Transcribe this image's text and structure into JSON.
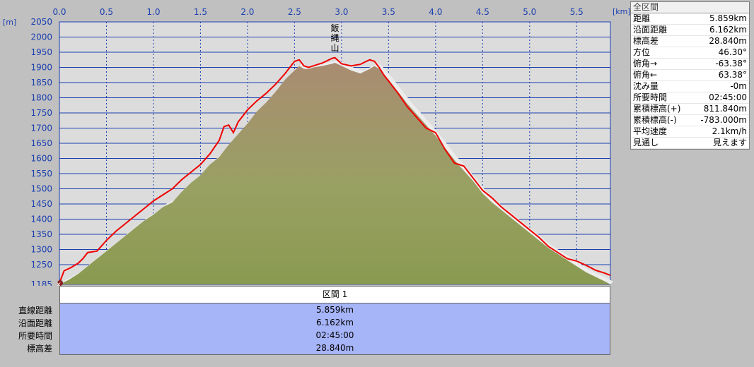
{
  "chart_data": {
    "type": "area",
    "title": "",
    "xlabel": "[km]",
    "ylabel": "[m]",
    "xlim": [
      0,
      5.859
    ],
    "ylim": [
      1185,
      2050
    ],
    "xticks": [
      "0.0",
      "0.5",
      "1.0",
      "1.5",
      "2.0",
      "2.5",
      "3.0",
      "3.5",
      "4.0",
      "4.5",
      "5.0",
      "5.5"
    ],
    "yticks": [
      "2050",
      "2000",
      "1950",
      "1900",
      "1850",
      "1800",
      "1750",
      "1700",
      "1650",
      "1600",
      "1550",
      "1500",
      "1450",
      "1400",
      "1350",
      "1300",
      "1250",
      "1185"
    ],
    "peak_label": "飯縄山",
    "peak_x": 2.93,
    "series": [
      {
        "color": "#ee0000",
        "x": [
          0.0,
          0.05,
          0.12,
          0.2,
          0.25,
          0.3,
          0.4,
          0.5,
          0.6,
          0.7,
          0.8,
          0.9,
          1.0,
          1.1,
          1.2,
          1.3,
          1.4,
          1.5,
          1.6,
          1.7,
          1.75,
          1.8,
          1.85,
          1.9,
          2.0,
          2.1,
          2.2,
          2.3,
          2.4,
          2.45,
          2.5,
          2.55,
          2.6,
          2.65,
          2.7,
          2.8,
          2.9,
          2.93,
          3.0,
          3.1,
          3.2,
          3.25,
          3.3,
          3.35,
          3.4,
          3.45,
          3.5,
          3.6,
          3.7,
          3.8,
          3.9,
          4.0,
          4.1,
          4.2,
          4.3,
          4.4,
          4.5,
          4.6,
          4.7,
          4.8,
          4.9,
          5.0,
          5.1,
          5.2,
          5.3,
          5.4,
          5.5,
          5.6,
          5.7,
          5.8,
          5.859
        ],
        "y": [
          1190,
          1230,
          1240,
          1255,
          1270,
          1290,
          1295,
          1330,
          1360,
          1385,
          1410,
          1435,
          1460,
          1480,
          1500,
          1530,
          1555,
          1580,
          1615,
          1660,
          1705,
          1710,
          1685,
          1720,
          1760,
          1790,
          1815,
          1845,
          1880,
          1900,
          1920,
          1925,
          1905,
          1900,
          1905,
          1915,
          1930,
          1932,
          1912,
          1905,
          1910,
          1918,
          1925,
          1920,
          1900,
          1875,
          1855,
          1815,
          1770,
          1735,
          1700,
          1685,
          1630,
          1585,
          1575,
          1535,
          1495,
          1470,
          1440,
          1415,
          1390,
          1365,
          1340,
          1310,
          1290,
          1270,
          1262,
          1248,
          1232,
          1222,
          1215
        ]
      },
      {
        "color": "#8a9a50",
        "x": [
          0.0,
          0.1,
          0.2,
          0.3,
          0.4,
          0.5,
          0.6,
          0.7,
          0.8,
          0.9,
          1.0,
          1.1,
          1.2,
          1.3,
          1.4,
          1.5,
          1.6,
          1.7,
          1.8,
          1.9,
          2.0,
          2.1,
          2.2,
          2.3,
          2.4,
          2.5,
          2.55,
          2.6,
          2.65,
          2.7,
          2.8,
          2.9,
          2.93,
          3.0,
          3.1,
          3.2,
          3.3,
          3.35,
          3.4,
          3.5,
          3.6,
          3.7,
          3.8,
          3.9,
          4.0,
          4.1,
          4.2,
          4.3,
          4.4,
          4.5,
          4.6,
          4.7,
          4.8,
          4.9,
          5.0,
          5.1,
          5.2,
          5.3,
          5.4,
          5.5,
          5.6,
          5.7,
          5.8,
          5.859
        ],
        "y": [
          1185,
          1200,
          1220,
          1245,
          1270,
          1295,
          1320,
          1345,
          1370,
          1395,
          1415,
          1440,
          1455,
          1490,
          1520,
          1545,
          1580,
          1605,
          1645,
          1680,
          1715,
          1755,
          1785,
          1820,
          1860,
          1890,
          1905,
          1895,
          1895,
          1900,
          1905,
          1912,
          1915,
          1905,
          1890,
          1880,
          1895,
          1905,
          1895,
          1860,
          1820,
          1780,
          1745,
          1710,
          1675,
          1635,
          1595,
          1560,
          1525,
          1485,
          1455,
          1430,
          1405,
          1380,
          1355,
          1330,
          1305,
          1285,
          1265,
          1245,
          1225,
          1210,
          1195,
          1185
        ]
      }
    ],
    "grid": true
  },
  "info": {
    "title": "全区間",
    "rows": [
      {
        "label": "距離",
        "value": "5.859km"
      },
      {
        "label": "沿面距離",
        "value": "6.162km"
      },
      {
        "label": "標高差",
        "value": "28.840m"
      },
      {
        "label": "方位",
        "value": "46.30°"
      },
      {
        "label": "俯角→",
        "value": "-63.38°"
      },
      {
        "label": "俯角←",
        "value": "63.38°"
      },
      {
        "label": "沈み量",
        "value": "-0m"
      },
      {
        "label": "所要時間",
        "value": "02:45:00"
      },
      {
        "label": "累積標高(+)",
        "value": "811.840m"
      },
      {
        "label": "累積標高(-)",
        "value": "-783.000m"
      },
      {
        "label": "平均速度",
        "value": "2.1km/h"
      },
      {
        "label": "見通し",
        "value": "見えます"
      }
    ]
  },
  "segment": {
    "title": "区間 1",
    "labels": [
      "直線距離",
      "沿面距離",
      "所要時間",
      "標高差"
    ],
    "values": [
      "5.859km",
      "6.162km",
      "02:45:00",
      "28.840m"
    ]
  }
}
